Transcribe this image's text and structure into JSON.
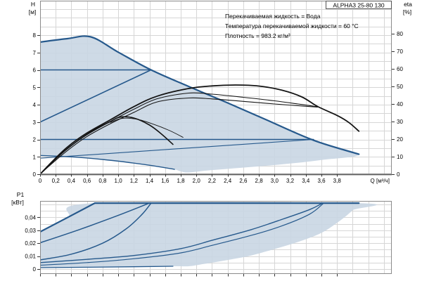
{
  "header": {
    "pump_model": "ALPHA3 25-80 130"
  },
  "conditions": [
    "Перекачиваемая жидкость = Вода",
    "Температура перекачиваемой жидкости = 60 °C",
    "Плотность = 983.2 кг/м³"
  ],
  "labels": {
    "h_axis": "H",
    "h_unit": "[м]",
    "eta_axis": "eta",
    "eta_unit": "[%]",
    "p_axis": "P1",
    "p_unit": "[кВт]",
    "q_axis": "Q [м³/ч]"
  },
  "colors": {
    "curve_blue": "#26598c",
    "curve_black": "#141414",
    "region_fill": "#c9d6e3",
    "grid": "#d6d6d6",
    "frame": "#8a8a8a",
    "axis": "#666666"
  },
  "chart_data": [
    {
      "id": "head-flow-chart",
      "type": "line",
      "xlabel": "Q [м³/ч]",
      "ylabel_left": "H [м]",
      "ylabel_right": "eta [%]",
      "xlim": [
        0,
        4.5
      ],
      "ylim_left": [
        0,
        9.98
      ],
      "ylim_right": [
        0,
        98.8
      ],
      "x_gridstep": 0.2,
      "y_grid": [
        0.5,
        9.5,
        0.5
      ],
      "baseline": 0,
      "show_x_labels": true,
      "x_ticks": [
        [
          0,
          "0"
        ],
        [
          0.2,
          "0,2"
        ],
        [
          0.4,
          "0,4"
        ],
        [
          0.6,
          "0,6"
        ],
        [
          0.8,
          "0,8"
        ],
        [
          1.0,
          "1,0"
        ],
        [
          1.2,
          "1,2"
        ],
        [
          1.4,
          "1,4"
        ],
        [
          1.6,
          "1,6"
        ],
        [
          1.8,
          "1,8"
        ],
        [
          2.0,
          "2,0"
        ],
        [
          2.2,
          "2,2"
        ],
        [
          2.4,
          "2,4"
        ],
        [
          2.6,
          "2,6"
        ],
        [
          2.8,
          "2,8"
        ],
        [
          3.0,
          "3,0"
        ],
        [
          3.2,
          "3,2"
        ],
        [
          3.4,
          "3,4"
        ],
        [
          3.6,
          "3,6"
        ],
        [
          3.8,
          "3,8"
        ]
      ],
      "y_ticks_left": [
        [
          0,
          "0"
        ],
        [
          1,
          "1"
        ],
        [
          2,
          "2"
        ],
        [
          3,
          "3"
        ],
        [
          4,
          "4"
        ],
        [
          5,
          "5"
        ],
        [
          6,
          "6"
        ],
        [
          7,
          "7"
        ],
        [
          8,
          "8"
        ]
      ],
      "y_ticks_right": [
        [
          0,
          "0"
        ],
        [
          10,
          "10"
        ],
        [
          20,
          "20"
        ],
        [
          30,
          "30"
        ],
        [
          40,
          "40"
        ],
        [
          50,
          "50"
        ],
        [
          60,
          "60"
        ],
        [
          70,
          "70"
        ],
        [
          80,
          "80"
        ]
      ],
      "region": {
        "name": "operating-range-region",
        "points": [
          [
            0,
            7.6
          ],
          [
            0.35,
            7.8
          ],
          [
            0.65,
            7.9
          ],
          [
            1.0,
            7.02
          ],
          [
            1.42,
            6.0
          ],
          [
            1.9,
            5.05
          ],
          [
            2.4,
            4.1
          ],
          [
            2.9,
            3.12
          ],
          [
            3.5,
            1.95
          ],
          [
            4.08,
            1.15
          ],
          [
            3.6,
            0.82
          ],
          [
            3.1,
            0.57
          ],
          [
            2.6,
            0.38
          ],
          [
            2.15,
            0.22
          ],
          [
            1.9,
            0.1
          ],
          [
            1.8,
            0.16
          ],
          [
            1.72,
            0.28
          ],
          [
            1.5,
            0.45
          ],
          [
            1.2,
            0.64
          ],
          [
            0.8,
            0.85
          ],
          [
            0.4,
            1.0
          ],
          [
            0,
            1.08
          ]
        ]
      },
      "series": [
        {
          "name": "max-speed-curve",
          "axis": "left",
          "color": "#26598c",
          "width": 2.2,
          "smooth": true,
          "points": [
            [
              0,
              7.6
            ],
            [
              0.35,
              7.8
            ],
            [
              0.65,
              7.9
            ],
            [
              1.0,
              7.02
            ],
            [
              1.42,
              6.0
            ],
            [
              1.9,
              5.05
            ],
            [
              2.4,
              4.1
            ],
            [
              2.9,
              3.12
            ],
            [
              3.5,
              1.95
            ],
            [
              4.08,
              1.15
            ]
          ]
        },
        {
          "name": "const-pressure-6m-curve",
          "axis": "left",
          "color": "#26598c",
          "width": 1.6,
          "smooth": false,
          "points": [
            [
              0,
              6
            ],
            [
              1.42,
              6
            ]
          ]
        },
        {
          "name": "prop-pressure-6m-curve",
          "axis": "left",
          "color": "#26598c",
          "width": 1.6,
          "smooth": false,
          "points": [
            [
              0,
              3
            ],
            [
              1.42,
              6
            ]
          ]
        },
        {
          "name": "const-pressure-2m-curve",
          "axis": "left",
          "color": "#26598c",
          "width": 1.6,
          "smooth": false,
          "points": [
            [
              0,
              2
            ],
            [
              3.5,
              2
            ]
          ]
        },
        {
          "name": "prop-pressure-2m-curve",
          "axis": "left",
          "color": "#26598c",
          "width": 1.1,
          "smooth": false,
          "points": [
            [
              0,
              0.92
            ],
            [
              3.5,
              2
            ]
          ]
        },
        {
          "name": "min-speed-curve",
          "axis": "left",
          "color": "#26598c",
          "width": 1.4,
          "smooth": true,
          "points": [
            [
              0,
              1.08
            ],
            [
              0.4,
              1.0
            ],
            [
              0.8,
              0.85
            ],
            [
              1.2,
              0.64
            ],
            [
              1.5,
              0.45
            ],
            [
              1.72,
              0.28
            ]
          ]
        },
        {
          "name": "eta-max-speed-curve",
          "axis": "right",
          "color": "#141414",
          "width": 1.8,
          "smooth": true,
          "points": [
            [
              0,
              0
            ],
            [
              0.15,
              7
            ],
            [
              0.35,
              15.5
            ],
            [
              0.6,
              23.5
            ],
            [
              0.9,
              31
            ],
            [
              1.2,
              38.5
            ],
            [
              1.5,
              44.5
            ],
            [
              1.9,
              48.8
            ],
            [
              2.2,
              50.3
            ],
            [
              2.5,
              50.8
            ],
            [
              2.8,
              50.2
            ],
            [
              3.1,
              47.8
            ],
            [
              3.35,
              44
            ],
            [
              3.55,
              38.6
            ],
            [
              3.8,
              33.5
            ],
            [
              3.95,
              29.5
            ],
            [
              4.08,
              24.5
            ]
          ]
        },
        {
          "name": "eta-cp-curve",
          "axis": "right",
          "color": "#141414",
          "width": 1.1,
          "smooth": true,
          "points": [
            [
              0,
              0
            ],
            [
              0.15,
              6.5
            ],
            [
              0.35,
              14.5
            ],
            [
              0.6,
              22.5
            ],
            [
              0.9,
              30
            ],
            [
              1.2,
              37
            ],
            [
              1.5,
              43
            ],
            [
              1.9,
              46.2
            ],
            [
              2.2,
              45.6
            ],
            [
              2.6,
              43.8
            ],
            [
              3.0,
              41.8
            ],
            [
              3.3,
              40
            ],
            [
              3.55,
              38.4
            ]
          ]
        },
        {
          "name": "eta-pp-curve",
          "axis": "right",
          "color": "#141414",
          "width": 1.1,
          "smooth": true,
          "points": [
            [
              0,
              0
            ],
            [
              0.15,
              6
            ],
            [
              0.35,
              13.5
            ],
            [
              0.6,
              21.5
            ],
            [
              0.9,
              28.8
            ],
            [
              1.2,
              35.2
            ],
            [
              1.5,
              41.2
            ],
            [
              1.9,
              43.4
            ],
            [
              2.2,
              42.9
            ],
            [
              2.6,
              41.5
            ],
            [
              3.0,
              40
            ],
            [
              3.3,
              39
            ],
            [
              3.55,
              38.2
            ]
          ]
        },
        {
          "name": "eta-min-speed-curve",
          "axis": "right",
          "color": "#141414",
          "width": 1.6,
          "smooth": true,
          "points": [
            [
              0,
              0
            ],
            [
              0.2,
              9
            ],
            [
              0.45,
              18
            ],
            [
              0.7,
              25.5
            ],
            [
              0.9,
              30
            ],
            [
              1.02,
              32.5
            ],
            [
              1.2,
              32
            ],
            [
              1.4,
              28
            ],
            [
              1.55,
              23
            ],
            [
              1.7,
              17
            ]
          ]
        },
        {
          "name": "eta-min-speed-thin-curve",
          "axis": "right",
          "color": "#141414",
          "width": 0.9,
          "smooth": true,
          "points": [
            [
              0.9,
              29.5
            ],
            [
              1.05,
              31.8
            ],
            [
              1.25,
              31.2
            ],
            [
              1.45,
              28.5
            ],
            [
              1.65,
              25
            ],
            [
              1.83,
              21
            ]
          ]
        }
      ]
    },
    {
      "id": "power-chart",
      "type": "line",
      "xlabel": "",
      "ylabel_left": "P1 [кВт]",
      "xlim": [
        0,
        4.5
      ],
      "ylim_left": [
        -0.0038,
        0.0527
      ],
      "x_gridstep": 0.2,
      "y_grid": [
        0,
        0.05,
        0.005
      ],
      "baseline": null,
      "show_x_labels": false,
      "x_ticks": [
        [
          0,
          ""
        ],
        [
          0.2,
          ""
        ],
        [
          0.4,
          ""
        ],
        [
          0.6,
          ""
        ],
        [
          0.8,
          ""
        ],
        [
          1.0,
          ""
        ],
        [
          1.2,
          ""
        ],
        [
          1.4,
          ""
        ],
        [
          1.6,
          ""
        ],
        [
          1.8,
          ""
        ],
        [
          2.0,
          ""
        ],
        [
          2.2,
          ""
        ],
        [
          2.4,
          ""
        ],
        [
          2.6,
          ""
        ],
        [
          2.8,
          ""
        ],
        [
          3.0,
          ""
        ],
        [
          3.2,
          ""
        ],
        [
          3.4,
          ""
        ],
        [
          3.6,
          ""
        ],
        [
          3.8,
          ""
        ]
      ],
      "y_ticks_left": [
        [
          0,
          "0"
        ],
        [
          0.01,
          "0,01"
        ],
        [
          0.02,
          "0,02"
        ],
        [
          0.03,
          "0,03"
        ],
        [
          0.04,
          "0,04"
        ]
      ],
      "region": {
        "name": "power-range-region",
        "points": [
          [
            0,
            0.0288
          ],
          [
            0.35,
            0.0398
          ],
          [
            0.7,
            0.051
          ],
          [
            4.08,
            0.051
          ],
          [
            4.0,
            0.0455
          ],
          [
            3.85,
            0.038
          ],
          [
            3.6,
            0.028
          ],
          [
            3.3,
            0.021
          ],
          [
            3.0,
            0.0155
          ],
          [
            2.7,
            0.0105
          ],
          [
            2.4,
            0.007
          ],
          [
            2.1,
            0.004
          ],
          [
            1.9,
            0.0022
          ],
          [
            1.7,
            0.0022
          ],
          [
            1.2,
            0.0018
          ],
          [
            0.6,
            0.0014
          ],
          [
            0,
            0.001
          ]
        ]
      },
      "series": [
        {
          "name": "power-max-speed-curve",
          "axis": "left",
          "color": "#26598c",
          "width": 2.2,
          "smooth": false,
          "points": [
            [
              0,
              0.0288
            ],
            [
              0.35,
              0.0398
            ],
            [
              0.7,
              0.051
            ],
            [
              4.08,
              0.051
            ]
          ]
        },
        {
          "name": "power-cp6-curve",
          "axis": "left",
          "color": "#26598c",
          "width": 1.5,
          "smooth": true,
          "points": [
            [
              0,
              0.0203
            ],
            [
              0.5,
              0.0305
            ],
            [
              1.0,
              0.0415
            ],
            [
              1.4,
              0.051
            ]
          ]
        },
        {
          "name": "power-pp6-curve",
          "axis": "left",
          "color": "#26598c",
          "width": 1.5,
          "smooth": true,
          "points": [
            [
              0,
              0.0071
            ],
            [
              0.4,
              0.0115
            ],
            [
              0.8,
              0.02
            ],
            [
              1.1,
              0.031
            ],
            [
              1.3,
              0.042
            ],
            [
              1.42,
              0.051
            ]
          ]
        },
        {
          "name": "power-cp2-curve",
          "axis": "left",
          "color": "#26598c",
          "width": 1.4,
          "smooth": true,
          "points": [
            [
              0,
              0.005
            ],
            [
              0.6,
              0.0075
            ],
            [
              1.2,
              0.0105
            ],
            [
              1.8,
              0.0158
            ],
            [
              2.2,
              0.0222
            ],
            [
              2.7,
              0.0305
            ],
            [
              3.1,
              0.0385
            ],
            [
              3.45,
              0.046
            ],
            [
              3.6,
              0.0505
            ]
          ]
        },
        {
          "name": "power-pp2-curve",
          "axis": "left",
          "color": "#26598c",
          "width": 1.2,
          "smooth": true,
          "points": [
            [
              0,
              0.003
            ],
            [
              0.6,
              0.005
            ],
            [
              1.2,
              0.008
            ],
            [
              1.8,
              0.0125
            ],
            [
              2.2,
              0.0183
            ],
            [
              2.7,
              0.026
            ],
            [
              3.1,
              0.0335
            ],
            [
              3.45,
              0.0425
            ],
            [
              3.62,
              0.0505
            ]
          ]
        },
        {
          "name": "power-min-speed-curve",
          "axis": "left",
          "color": "#26598c",
          "width": 1.3,
          "smooth": false,
          "points": [
            [
              0,
              0.0011
            ],
            [
              0.6,
              0.0014
            ],
            [
              1.2,
              0.0018
            ],
            [
              1.7,
              0.0022
            ]
          ]
        }
      ]
    }
  ]
}
